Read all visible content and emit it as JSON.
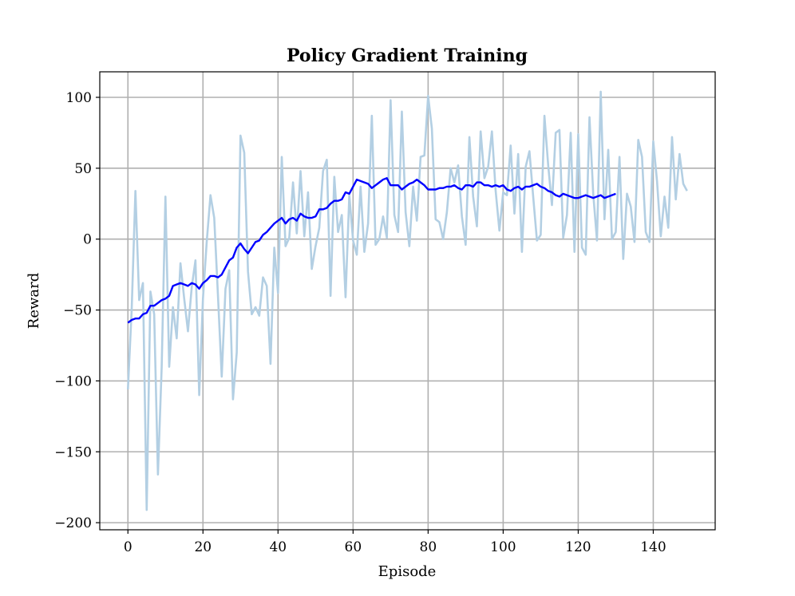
{
  "chart_data": {
    "type": "line",
    "title": "Policy Gradient Training",
    "xlabel": "Episode",
    "ylabel": "Reward",
    "xlim": [
      -7.5,
      156.5
    ],
    "ylim": [
      -205,
      118
    ],
    "grid": true,
    "x_ticks": [
      0,
      20,
      40,
      60,
      80,
      100,
      120,
      140
    ],
    "y_ticks": [
      100,
      50,
      0,
      -50,
      -100,
      -150,
      -200
    ],
    "x_tick_labels": [
      "0",
      "20",
      "40",
      "60",
      "80",
      "100",
      "120",
      "140"
    ],
    "y_tick_labels": [
      "100",
      "50",
      "0",
      "−50",
      "−100",
      "−150",
      "−200"
    ],
    "series": [
      {
        "color": "#b3cfe3",
        "x": [
          0,
          1,
          2,
          3,
          4,
          5,
          6,
          7,
          8,
          9,
          10,
          11,
          12,
          13,
          14,
          15,
          16,
          17,
          18,
          19,
          20,
          21,
          22,
          23,
          24,
          25,
          26,
          27,
          28,
          29,
          30,
          31,
          32,
          33,
          34,
          35,
          36,
          37,
          38,
          39,
          40,
          41,
          42,
          43,
          44,
          45,
          46,
          47,
          48,
          49,
          50,
          51,
          52,
          53,
          54,
          55,
          56,
          57,
          58,
          59,
          60,
          61,
          62,
          63,
          64,
          65,
          66,
          67,
          68,
          69,
          70,
          71,
          72,
          73,
          74,
          75,
          76,
          77,
          78,
          79,
          80,
          81,
          82,
          83,
          84,
          85,
          86,
          87,
          88,
          89,
          90,
          91,
          92,
          93,
          94,
          95,
          96,
          97,
          98,
          99,
          100,
          101,
          102,
          103,
          104,
          105,
          106,
          107,
          108,
          109,
          110,
          111,
          112,
          113,
          114,
          115,
          116,
          117,
          118,
          119,
          120,
          121,
          122,
          123,
          124,
          125,
          126,
          127,
          128,
          129,
          130,
          131,
          132,
          133,
          134,
          135,
          136,
          137,
          138,
          139,
          140,
          141,
          142,
          143,
          144,
          145,
          146,
          147,
          148,
          149
        ],
        "values": [
          -106,
          -50,
          34,
          -43,
          -31,
          -191,
          -37,
          -53,
          -166,
          -90,
          30,
          -90,
          -48,
          -70,
          -17,
          -42,
          -65,
          -34,
          -15,
          -110,
          -42,
          -2,
          31,
          15,
          -40,
          -97,
          -35,
          -22,
          -113,
          -80,
          73,
          61,
          -23,
          -53,
          -48,
          -54,
          -27,
          -33,
          -88,
          -6,
          -38,
          58,
          -5,
          1,
          40,
          4,
          48,
          2,
          33,
          -21,
          -5,
          8,
          48,
          56,
          -40,
          44,
          5,
          17,
          -41,
          31,
          -1,
          -11,
          37,
          -9,
          11,
          87,
          -4,
          0,
          16,
          1,
          98,
          17,
          5,
          90,
          19,
          -5,
          37,
          13,
          58,
          59,
          101,
          78,
          14,
          12,
          0,
          19,
          50,
          40,
          52,
          16,
          -4,
          72,
          30,
          9,
          76,
          43,
          51,
          76,
          34,
          6,
          33,
          31,
          66,
          18,
          60,
          -9,
          51,
          62,
          30,
          -1,
          3,
          87,
          52,
          24,
          75,
          77,
          1,
          17,
          75,
          -9,
          74,
          -6,
          -11,
          86,
          32,
          -1,
          104,
          14,
          63,
          0,
          5,
          58,
          -14,
          32,
          23,
          -2,
          70,
          58,
          5,
          -2,
          69,
          41,
          2,
          30,
          8,
          72,
          28,
          60,
          39,
          34
        ]
      },
      {
        "color": "#0000ff",
        "x": [
          0,
          1,
          2,
          3,
          4,
          5,
          6,
          7,
          8,
          9,
          10,
          11,
          12,
          13,
          14,
          15,
          16,
          17,
          18,
          19,
          20,
          21,
          22,
          23,
          24,
          25,
          26,
          27,
          28,
          29,
          30,
          31,
          32,
          33,
          34,
          35,
          36,
          37,
          38,
          39,
          40,
          41,
          42,
          43,
          44,
          45,
          46,
          47,
          48,
          49,
          50,
          51,
          52,
          53,
          54,
          55,
          56,
          57,
          58,
          59,
          60,
          61,
          62,
          63,
          64,
          65,
          66,
          67,
          68,
          69,
          70,
          71,
          72,
          73,
          74,
          75,
          76,
          77,
          78,
          79,
          80,
          81,
          82,
          83,
          84,
          85,
          86,
          87,
          88,
          89,
          90,
          91,
          92,
          93,
          94,
          95,
          96,
          97,
          98,
          99,
          100,
          101,
          102,
          103,
          104,
          105,
          106,
          107,
          108,
          109,
          110,
          111,
          112,
          113,
          114,
          115,
          116,
          117,
          118,
          119,
          120,
          121,
          122,
          123,
          124,
          125,
          126,
          127,
          128,
          129,
          130
        ],
        "values": [
          -59,
          -57,
          -56,
          -56,
          -53,
          -52,
          -47,
          -47,
          -45,
          -43,
          -42,
          -40,
          -33,
          -32,
          -31,
          -32,
          -33,
          -31,
          -32,
          -35,
          -31,
          -29,
          -26,
          -26,
          -27,
          -25,
          -20,
          -15,
          -13,
          -6,
          -3,
          -7,
          -10,
          -6,
          -2,
          -1,
          3,
          5,
          8,
          11,
          13,
          15,
          11,
          14,
          15,
          13,
          18,
          16,
          15,
          15,
          16,
          21,
          21,
          22,
          25,
          27,
          27,
          28,
          33,
          32,
          37,
          42,
          41,
          40,
          39,
          36,
          38,
          40,
          42,
          43,
          38,
          38,
          38,
          35,
          37,
          39,
          40,
          42,
          40,
          38,
          35,
          35,
          35,
          36,
          36,
          37,
          37,
          38,
          36,
          35,
          38,
          38,
          37,
          40,
          40,
          38,
          38,
          37,
          38,
          37,
          38,
          35,
          34,
          36,
          37,
          35,
          37,
          37,
          38,
          39,
          37,
          36,
          34,
          33,
          31,
          30,
          32,
          31,
          30,
          29,
          29,
          30,
          31,
          30,
          29,
          30,
          31,
          29,
          30,
          31,
          32
        ]
      }
    ]
  }
}
